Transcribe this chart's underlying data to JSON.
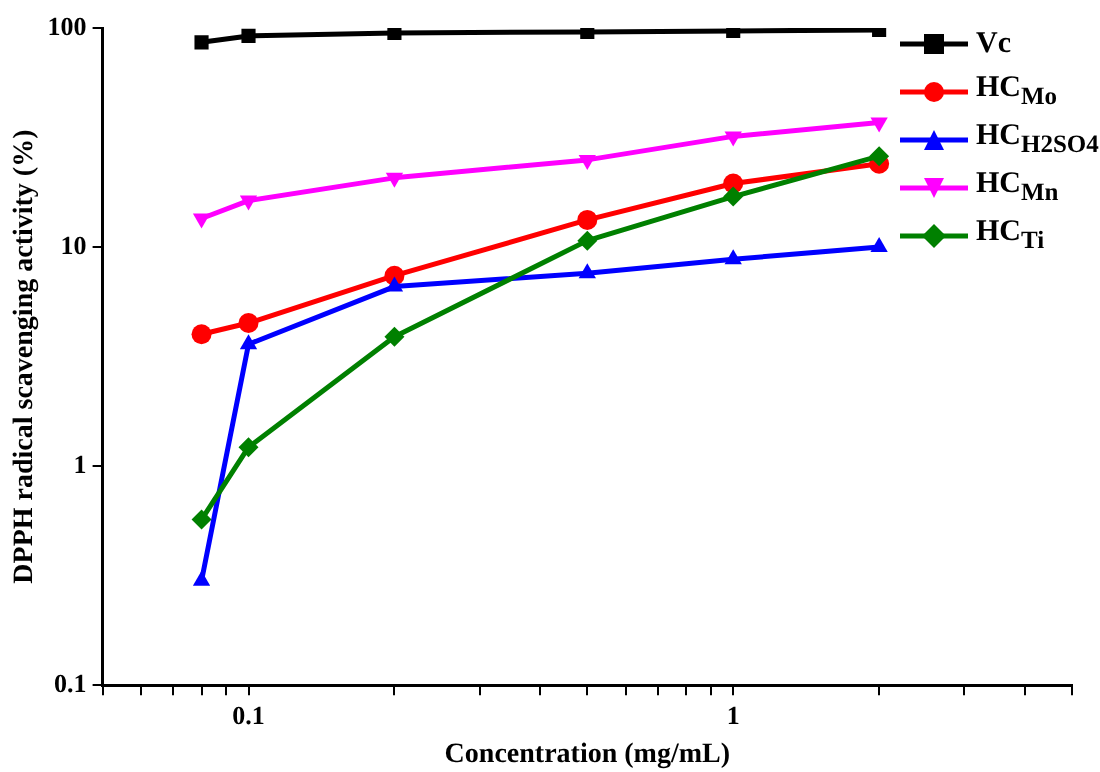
{
  "chart_data": {
    "type": "line",
    "xlabel": "Concentration (mg/mL)",
    "ylabel": "DPPH radical scavenging activity (%)",
    "x": [
      0.08,
      0.1,
      0.2,
      0.5,
      1,
      2
    ],
    "series": [
      {
        "name": "Vc",
        "color": "#000000",
        "marker": "square",
        "values": [
          86,
          92,
          95,
          96,
          97,
          98
        ]
      },
      {
        "name": "HC$_{Mo}$",
        "color": "#ff0000",
        "marker": "circle",
        "values": [
          4.0,
          4.5,
          7.4,
          13.3,
          19.5,
          24
        ]
      },
      {
        "name": "HC$_{H2SO4}$",
        "color": "#0000ff",
        "marker": "triangle",
        "values": [
          0.3,
          3.6,
          6.6,
          7.6,
          8.8,
          10
        ]
      },
      {
        "name": "HC$_{Mn}$",
        "color": "#ff00ff",
        "marker": "triangle-down",
        "values": [
          13.5,
          16.3,
          20.7,
          25,
          32,
          37
        ]
      },
      {
        "name": "HC$_{Ti}$",
        "color": "#008000",
        "marker": "diamond",
        "values": [
          0.57,
          1.22,
          3.9,
          10.7,
          17,
          26
        ]
      }
    ],
    "log": "xy",
    "xlim": [
      0.05,
      5
    ],
    "ylim": [
      0.1,
      100
    ],
    "xticks": [
      {
        "value": 0.05,
        "label": null
      },
      {
        "value": 0.06,
        "label": null
      },
      {
        "value": 0.07,
        "label": null
      },
      {
        "value": 0.08,
        "label": null
      },
      {
        "value": 0.09,
        "label": null
      },
      0.1,
      {
        "value": 0.2,
        "label": null
      },
      {
        "value": 0.3,
        "label": null
      },
      {
        "value": 0.4,
        "label": null
      },
      {
        "value": 0.5,
        "label": null
      },
      {
        "value": 0.6,
        "label": null
      },
      {
        "value": 0.7,
        "label": null
      },
      {
        "value": 0.8,
        "label": null
      },
      {
        "value": 0.9,
        "label": null
      },
      1,
      {
        "value": 2,
        "label": null
      },
      {
        "value": 3,
        "label": null
      },
      {
        "value": 4,
        "label": null
      },
      {
        "value": 5,
        "label": null
      }
    ],
    "yticks": [
      0.1,
      1,
      10,
      100
    ],
    "grid": false,
    "legend": "top right",
    "line_style": "solid"
  }
}
